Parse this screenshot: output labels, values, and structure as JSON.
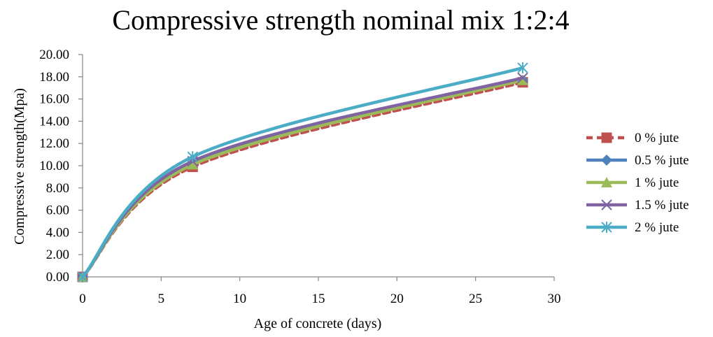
{
  "chart_data": {
    "type": "line",
    "title": "Compressive strength nominal mix 1:2:4",
    "xlabel": "Age of concrete (days)",
    "ylabel": "Compressive  strength(Mpa)",
    "xlim": [
      0,
      30
    ],
    "ylim": [
      0,
      20
    ],
    "x_ticks": [
      "0",
      "5",
      "10",
      "15",
      "20",
      "25",
      "30"
    ],
    "y_ticks": [
      "0.00",
      "2.00",
      "4.00",
      "6.00",
      "8.00",
      "10.00",
      "12.00",
      "14.00",
      "16.00",
      "18.00",
      "20.00"
    ],
    "grid": false,
    "legend_position": "right",
    "series": [
      {
        "name": "0  % jute",
        "x": [
          0,
          7,
          28
        ],
        "y": [
          0,
          9.9,
          17.5
        ],
        "color": "#C0504D",
        "marker": "square",
        "dashed": true
      },
      {
        "name": "0.5  % jute",
        "x": [
          0,
          7,
          28
        ],
        "y": [
          0,
          10.2,
          17.7
        ],
        "color": "#4F81BD",
        "marker": "diamond",
        "dashed": false
      },
      {
        "name": "1  % jute",
        "x": [
          0,
          7,
          28
        ],
        "y": [
          0,
          10.1,
          17.7
        ],
        "color": "#9BBB59",
        "marker": "triangle",
        "dashed": false
      },
      {
        "name": "1.5 % jute",
        "x": [
          0,
          7,
          28
        ],
        "y": [
          0,
          10.4,
          17.9
        ],
        "color": "#8064A2",
        "marker": "x",
        "dashed": false
      },
      {
        "name": "2 % jute",
        "x": [
          0,
          7,
          28
        ],
        "y": [
          0,
          10.8,
          18.8
        ],
        "color": "#4BACC6",
        "marker": "star",
        "dashed": false
      }
    ]
  }
}
